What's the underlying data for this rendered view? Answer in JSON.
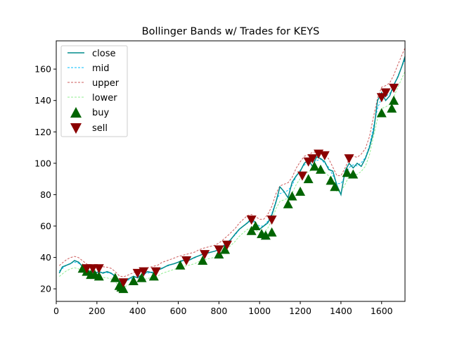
{
  "chart_data": {
    "type": "line",
    "title": "Bollinger Bands w/ Trades for KEYS",
    "xlabel": "",
    "ylabel": "",
    "xlim": [
      0,
      1715
    ],
    "ylim": [
      12,
      178
    ],
    "xticks": [
      0,
      200,
      400,
      600,
      800,
      1000,
      1200,
      1400,
      1600
    ],
    "yticks": [
      20,
      40,
      60,
      80,
      100,
      120,
      140,
      160
    ],
    "grid": false,
    "legend_position": "top-left",
    "legend": [
      {
        "label": "close",
        "color": "#008b8b",
        "style": "solid"
      },
      {
        "label": "mid",
        "color": "#00bfff",
        "style": "dashed"
      },
      {
        "label": "upper",
        "color": "#cd5c5c",
        "style": "dashed"
      },
      {
        "label": "lower",
        "color": "#90ee90",
        "style": "dashed"
      },
      {
        "label": "buy",
        "color": "#006400",
        "marker": "triangle-up"
      },
      {
        "label": "sell",
        "color": "#8b0000",
        "marker": "triangle-down"
      }
    ],
    "series": [
      {
        "name": "close",
        "color": "#008b8b",
        "x": [
          15,
          30,
          50,
          70,
          90,
          110,
          130,
          150,
          170,
          190,
          210,
          230,
          250,
          270,
          290,
          310,
          330,
          350,
          380,
          400,
          420,
          450,
          480,
          500,
          520,
          550,
          580,
          600,
          620,
          650,
          680,
          700,
          720,
          750,
          780,
          800,
          820,
          850,
          880,
          900,
          920,
          940,
          960,
          980,
          1000,
          1020,
          1040,
          1060,
          1080,
          1100,
          1120,
          1140,
          1160,
          1180,
          1200,
          1220,
          1240,
          1260,
          1280,
          1300,
          1320,
          1340,
          1360,
          1380,
          1400,
          1420,
          1440,
          1460,
          1480,
          1500,
          1520,
          1540,
          1560,
          1580,
          1600,
          1620,
          1640,
          1660,
          1680,
          1700,
          1715
        ],
        "values": [
          30,
          34,
          35,
          36,
          38,
          37,
          34,
          32,
          31,
          30,
          31,
          30,
          31,
          30,
          28,
          25,
          22,
          26,
          28,
          27,
          29,
          31,
          30,
          32,
          33,
          35,
          36,
          37,
          38,
          38,
          40,
          41,
          42,
          43,
          44,
          45,
          47,
          50,
          55,
          58,
          60,
          62,
          65,
          62,
          58,
          60,
          62,
          67,
          75,
          85,
          82,
          78,
          88,
          92,
          95,
          100,
          102,
          98,
          104,
          103,
          101,
          96,
          95,
          86,
          80,
          95,
          100,
          97,
          100,
          98,
          103,
          110,
          120,
          140,
          145,
          140,
          143,
          150,
          155,
          162,
          168
        ]
      }
    ],
    "band_offsets": {
      "upper": 2.5,
      "lower": -2.5
    },
    "buy_signals": {
      "x": [
        130,
        150,
        170,
        190,
        210,
        290,
        310,
        320,
        330,
        380,
        420,
        480,
        610,
        720,
        800,
        830,
        960,
        980,
        1010,
        1030,
        1060,
        1140,
        1160,
        1200,
        1240,
        1270,
        1300,
        1350,
        1370,
        1430,
        1460,
        1600,
        1650,
        1660
      ],
      "values": [
        33,
        31,
        29,
        29,
        28,
        27,
        22,
        21,
        20,
        25,
        27,
        28,
        35,
        38,
        42,
        45,
        57,
        60,
        55,
        54,
        56,
        74,
        79,
        82,
        90,
        98,
        96,
        89,
        85,
        94,
        93,
        132,
        135,
        140
      ]
    },
    "sell_signals": {
      "x": [
        150,
        180,
        210,
        330,
        400,
        430,
        490,
        640,
        730,
        800,
        840,
        960,
        1060,
        1210,
        1240,
        1260,
        1290,
        1320,
        1440,
        1600,
        1620,
        1660
      ],
      "values": [
        33,
        33,
        33,
        24,
        30,
        31,
        31,
        38,
        42,
        45,
        48,
        64,
        64,
        92,
        101,
        103,
        106,
        105,
        103,
        142,
        145,
        148
      ]
    }
  }
}
